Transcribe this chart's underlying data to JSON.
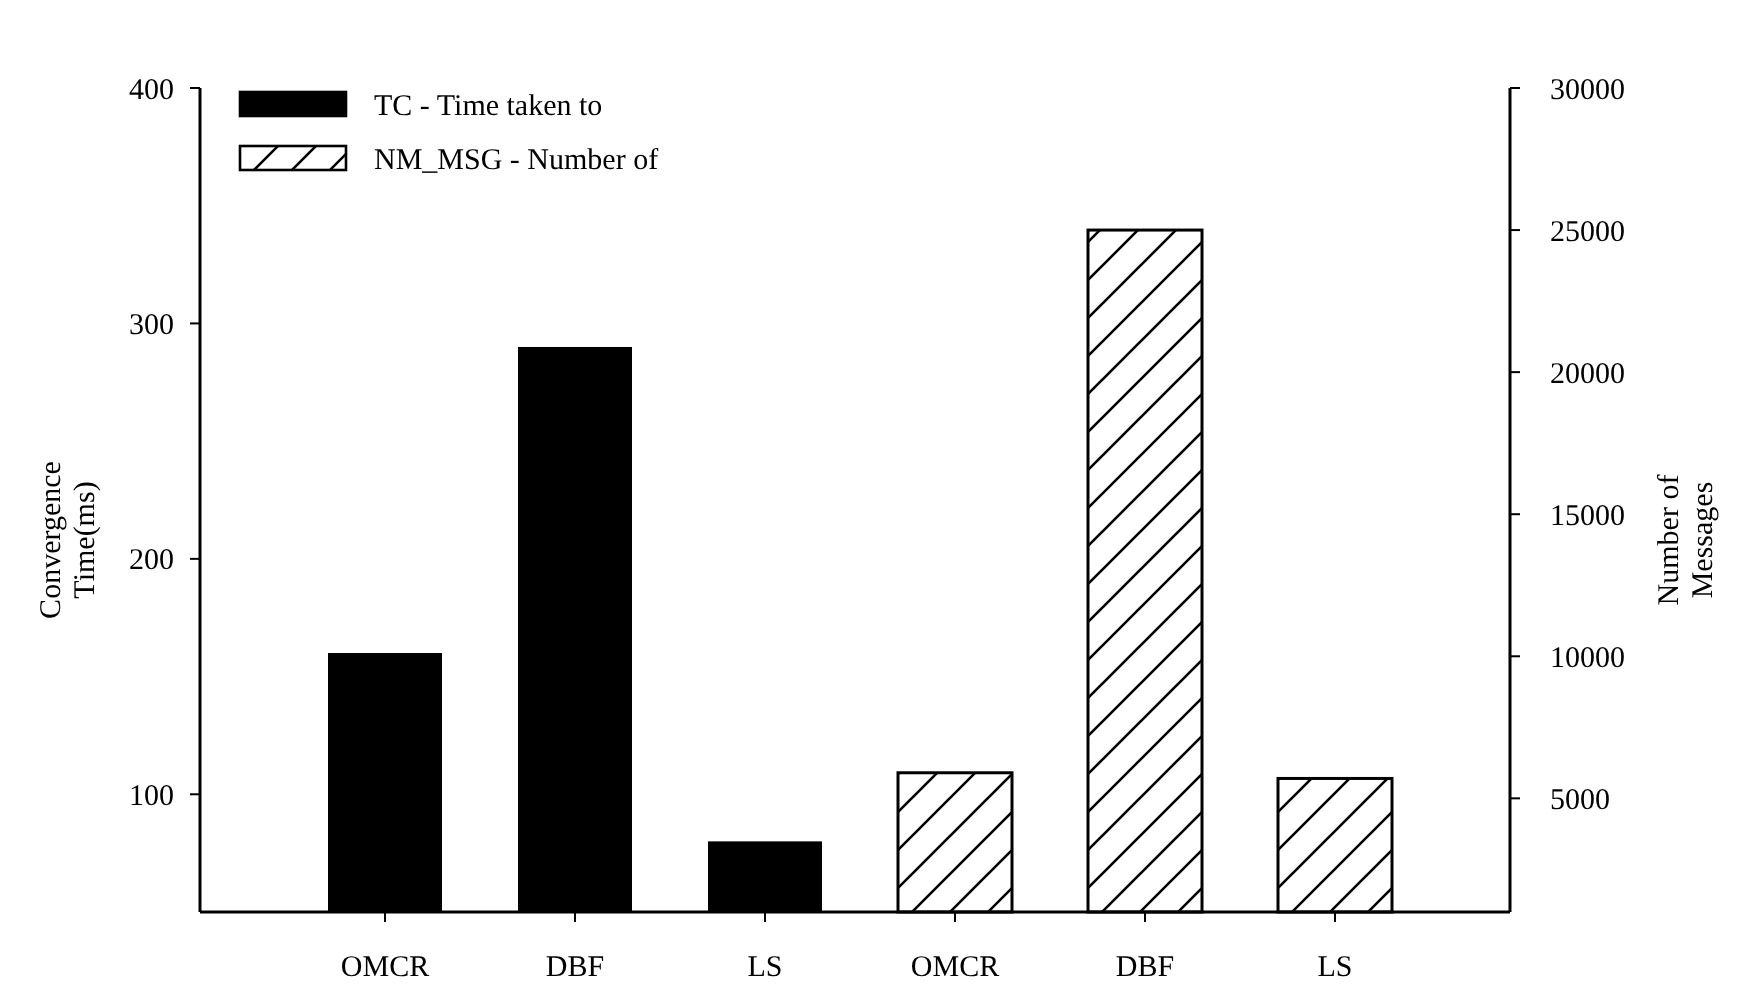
{
  "chart_data": {
    "type": "bar",
    "categories": [
      "OMCR",
      "DBF",
      "LS",
      "OMCR",
      "DBF",
      "LS"
    ],
    "series": [
      {
        "name": "TC - Time taken to",
        "color": "#000000",
        "values": [
          160,
          290,
          80,
          null,
          null,
          null
        ]
      },
      {
        "name": "NM_MSG - Number of",
        "color": "#000000",
        "axis": "y2",
        "values": [
          null,
          null,
          null,
          5900,
          25000,
          5700
        ]
      }
    ],
    "ylabel": "Convergence Time(ms)",
    "y2label": "Number of Messages",
    "ylim": [
      50,
      400
    ],
    "yticks": [
      100,
      200,
      300,
      400
    ],
    "y2lim": [
      1000,
      30000
    ],
    "y2ticks": [
      5000,
      10000,
      15000,
      20000,
      25000,
      30000
    ],
    "legend": "top left",
    "grid": false
  }
}
